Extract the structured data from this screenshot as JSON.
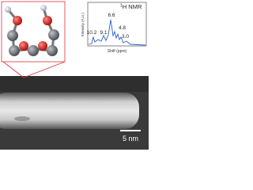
{
  "spectrum": {
    "title_superscript": "1",
    "title": "H NMR",
    "y_label": "Intensity (A.U.)",
    "x_label": "Shift (ppm)",
    "peaks": [
      "10.2",
      "9.1",
      "6.6",
      "4.8",
      "3.0"
    ]
  },
  "micrograph": {
    "scale_bar": "5 nm"
  }
}
